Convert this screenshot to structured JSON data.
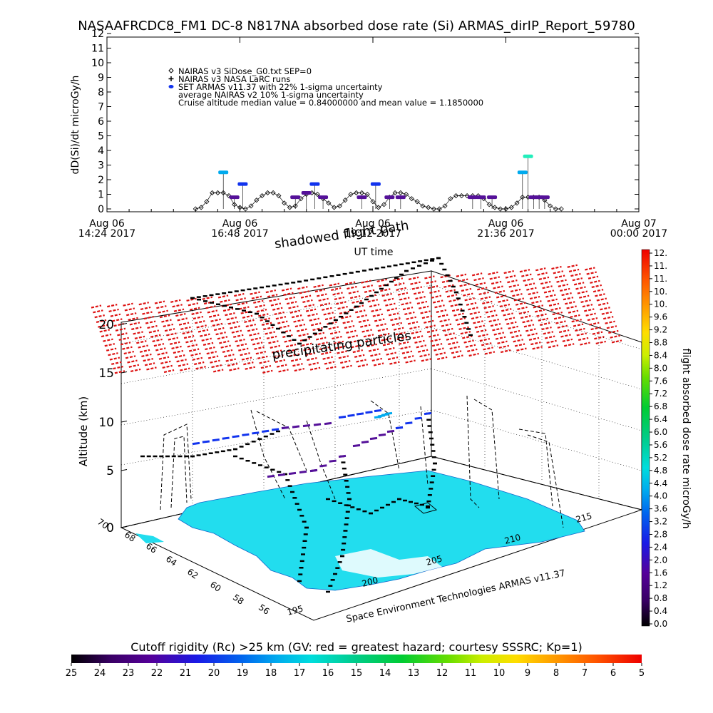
{
  "header": {
    "title": "NASAAFRCDC8_FM1 DC-8   N817NA absorbed dose rate (Si) ARMAS_dirIP_Report_59780"
  },
  "chart_data": [
    {
      "type": "scatter",
      "ylabel": "dD(Si)/dt microGy/h",
      "xlabel": "UT time",
      "ylim": [
        0,
        12
      ],
      "yticks": [
        "0",
        "1",
        "2",
        "3",
        "4",
        "5",
        "6",
        "7",
        "8",
        "9",
        "10",
        "11",
        "12"
      ],
      "xtick_labels": [
        [
          "Aug 06",
          "14:24 2017"
        ],
        [
          "Aug 06",
          "16:48 2017"
        ],
        [
          "Aug 06",
          "19:12 2017"
        ],
        [
          "Aug 06",
          "21:36 2017"
        ],
        [
          "Aug 07",
          "00:00 2017"
        ]
      ],
      "xlim_hours": [
        14.4,
        24.0
      ],
      "legend": [
        "NAIRAS v3 SiDose_G0.txt SEP=0",
        "NAIRAS v3 NASA LaRC runs",
        "SET ARMAS v11.37 with 22% 1-sigma uncertainty",
        "average NAIRAS v2 10% 1-sigma uncertainty",
        "Cruise altitude median value = 0.84000000 and mean value = 1.1850000"
      ],
      "legend_placement": "top-left",
      "series": [
        {
          "name": "NAIRAS v3 SiDose_G0.txt SEP=0",
          "marker": "diamond",
          "x": [
            16.0,
            16.1,
            16.2,
            16.3,
            16.4,
            16.5,
            16.6,
            16.7,
            16.8,
            16.9,
            17.0,
            17.1,
            17.2,
            17.3,
            17.4,
            17.5,
            17.6,
            17.7,
            17.8,
            17.9,
            18.0,
            18.1,
            18.2,
            18.3,
            18.4,
            18.5,
            18.6,
            18.7,
            18.8,
            18.9,
            19.0,
            19.1,
            19.2,
            19.3,
            19.4,
            19.5,
            19.6,
            19.7,
            19.8,
            19.9,
            20.0,
            20.1,
            20.2,
            20.3,
            20.4,
            20.5,
            20.6,
            20.7,
            20.8,
            20.9,
            21.0,
            21.1,
            21.2,
            21.3,
            21.4,
            21.5,
            21.6,
            21.7,
            21.8,
            21.9,
            22.0,
            22.1,
            22.2,
            22.3,
            22.4,
            22.5,
            22.6
          ],
          "y": [
            0.0,
            0.1,
            0.5,
            1.1,
            1.1,
            1.1,
            0.9,
            0.3,
            0.1,
            0.0,
            0.2,
            0.6,
            0.9,
            1.1,
            1.1,
            0.9,
            0.4,
            0.1,
            0.2,
            0.7,
            1.0,
            1.1,
            1.0,
            0.7,
            0.4,
            0.1,
            0.2,
            0.6,
            1.0,
            1.1,
            1.1,
            1.0,
            0.5,
            0.1,
            0.3,
            0.8,
            1.1,
            1.1,
            1.0,
            0.7,
            0.5,
            0.2,
            0.1,
            0.0,
            0.0,
            0.2,
            0.7,
            0.9,
            0.9,
            0.9,
            0.9,
            0.9,
            0.7,
            0.3,
            0.1,
            0.0,
            0.0,
            0.1,
            0.4,
            0.8,
            0.8,
            0.8,
            0.8,
            0.6,
            0.2,
            0.0,
            0.0
          ]
        },
        {
          "name": "SET ARMAS v11.37 with 22% 1-sigma uncertainty",
          "marker": "filled-dash",
          "x": [
            16.5,
            16.7,
            16.85,
            17.8,
            18.0,
            18.15,
            18.3,
            19.0,
            19.25,
            19.5,
            19.7,
            21.0,
            21.15,
            21.35,
            21.9,
            22.0,
            22.1,
            22.2,
            22.3
          ],
          "y": [
            2.5,
            0.8,
            1.7,
            0.8,
            1.1,
            1.7,
            0.8,
            0.8,
            1.7,
            0.8,
            0.8,
            0.8,
            0.8,
            0.8,
            2.5,
            3.6,
            0.8,
            0.8,
            0.8
          ],
          "colors": [
            "#00aaee",
            "#551199",
            "#1133ee",
            "#551199",
            "#551199",
            "#1133ee",
            "#551199",
            "#551199",
            "#1133ee",
            "#551199",
            "#551199",
            "#551199",
            "#551199",
            "#551199",
            "#00aaee",
            "#22eebb",
            "#551199",
            "#551199",
            "#551199"
          ]
        }
      ]
    },
    {
      "type": "scatter",
      "title": "",
      "zlabel": "Altitude (km)",
      "zticks": [
        "0",
        "5",
        "10",
        "15",
        "20"
      ],
      "lat_ticks": [
        "70",
        "68",
        "66",
        "64",
        "62",
        "60",
        "58",
        "56"
      ],
      "lon_ticks": [
        "195",
        "200",
        "205",
        "210",
        "215"
      ],
      "annotations": [
        "shadowed flight path",
        "precipitating particles"
      ],
      "credit": "Space Environment Technologies ARMAS v11.37"
    }
  ],
  "colorbar_right": {
    "label": "flight absorbed dose rate microGy/h",
    "ticks": [
      "0.0",
      "0.4",
      "0.8",
      "1.2",
      "1.6",
      "2.0",
      "2.4",
      "2.8",
      "3.2",
      "3.6",
      "4.0",
      "4.4",
      "4.8",
      "5.2",
      "5.6",
      "6.0",
      "6.4",
      "6.8",
      "7.2",
      "7.6",
      "8.0",
      "8.4",
      "8.8",
      "9.2",
      "9.6",
      "10.",
      "10.",
      "11.",
      "11.",
      "12."
    ]
  },
  "colorbar_bottom": {
    "title": "Cutoff rigidity (Rc) >25 km (GV: red = greatest hazard; courtesy SSSRC; Kp=1)",
    "ticks": [
      "25",
      "24",
      "23",
      "22",
      "21",
      "20",
      "19",
      "18",
      "17",
      "16",
      "15",
      "14",
      "13",
      "12",
      "11",
      "10",
      "9",
      "8",
      "7",
      "6",
      "5"
    ]
  },
  "colors": {
    "grid": "#000000",
    "surface": "#22ddee",
    "particles": "#dd1111",
    "armas_purple": "#551199",
    "armas_blue": "#1133ee",
    "armas_cyan": "#00aaee"
  }
}
